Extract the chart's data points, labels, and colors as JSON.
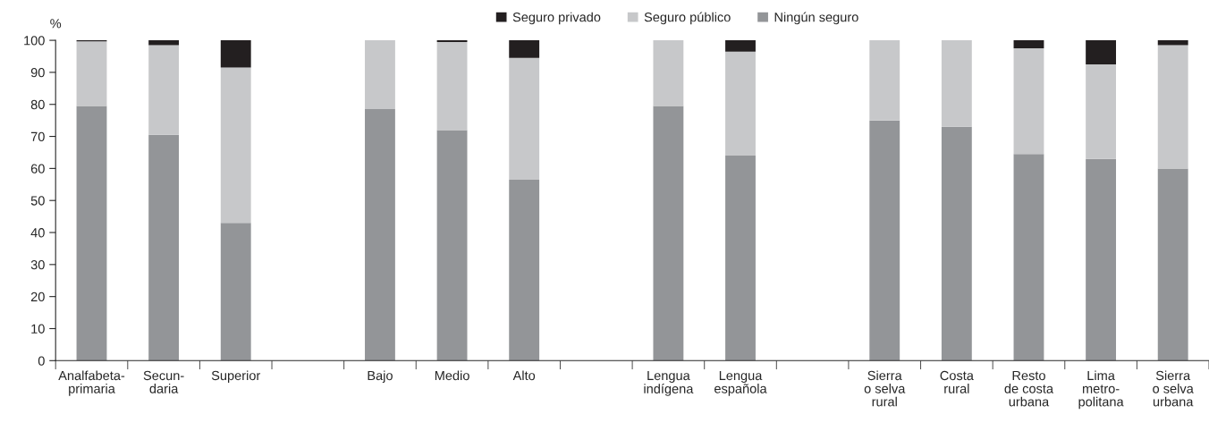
{
  "chart_data": {
    "type": "bar",
    "stacked": true,
    "ylabel": "%",
    "categories": [
      "Analfabeta-\nprimaria",
      "Secun-\ndaria",
      "Superior",
      null,
      "Bajo",
      "Medio",
      "Alto",
      null,
      "Lengua\nindígena",
      "Lengua\nespañola",
      null,
      "Sierra\no selva\nrural",
      "Costa\nrural",
      "Resto\nde costa\nurbana",
      "Lima\nmetro-\npolitana",
      "Sierra\no selva\nurbana"
    ],
    "series": [
      {
        "name": "Ningún seguro",
        "color": "#939598",
        "values": [
          79.5,
          70.5,
          43,
          null,
          78.5,
          72,
          56.5,
          null,
          79.5,
          64,
          null,
          75,
          73,
          64.5,
          63,
          60
        ]
      },
      {
        "name": "Seguro público",
        "color": "#c7c8ca",
        "values": [
          20.2,
          28,
          48.5,
          null,
          21.5,
          27.5,
          38,
          null,
          20.5,
          32.5,
          null,
          25,
          27,
          33,
          29.5,
          38.5
        ]
      },
      {
        "name": "Seguro privado",
        "color": "#231f20",
        "values": [
          0.3,
          1.5,
          8.5,
          null,
          0,
          0.5,
          5.5,
          null,
          0,
          3.5,
          null,
          0,
          0,
          2.5,
          7.5,
          1.5
        ]
      }
    ],
    "ylim": [
      0,
      100
    ],
    "yticks": [
      0,
      10,
      20,
      30,
      40,
      50,
      60,
      70,
      80,
      90,
      100
    ],
    "grid": false,
    "legend": "top right"
  }
}
